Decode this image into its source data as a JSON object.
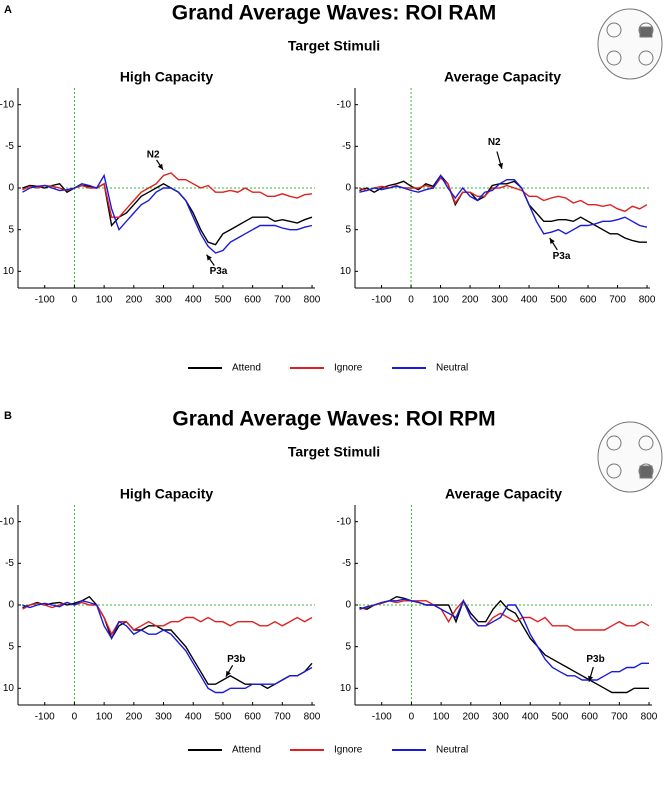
{
  "figure": {
    "panels": [
      {
        "label": "A",
        "title": "Grand Average Waves: ROI RAM",
        "subtitle": "Target Stimuli"
      },
      {
        "label": "B",
        "title": "Grand Average Waves: ROI RPM",
        "subtitle": "Target Stimuli"
      }
    ]
  },
  "chart_data": [
    {
      "type": "line",
      "title": "High Capacity",
      "annotations": [
        "N2",
        "P3a"
      ],
      "x": [
        -175,
        -150,
        -125,
        -100,
        -75,
        -50,
        -25,
        0,
        25,
        50,
        75,
        100,
        125,
        150,
        175,
        200,
        225,
        250,
        275,
        300,
        325,
        350,
        375,
        400,
        425,
        450,
        475,
        500,
        525,
        550,
        575,
        600,
        625,
        650,
        675,
        700,
        725,
        750,
        775,
        800
      ],
      "xlim": [
        -190,
        810
      ],
      "xticks": [
        -100,
        0,
        100,
        200,
        300,
        400,
        500,
        600,
        700,
        800
      ],
      "ylim": [
        -12,
        12
      ],
      "y_inverted": true,
      "yticks": [
        -10,
        -5,
        0,
        5,
        10
      ],
      "series": [
        {
          "name": "Attend",
          "color": "#000000",
          "values": [
            0,
            -0.3,
            -0.2,
            0,
            -0.3,
            -0.5,
            0.5,
            0,
            -0.3,
            -0.2,
            0,
            -0.5,
            4.5,
            3.5,
            3,
            2,
            1,
            0.5,
            0,
            -0.5,
            0,
            0.5,
            1.5,
            3,
            5,
            6.5,
            6.8,
            5.5,
            5,
            4.5,
            4,
            3.5,
            3.5,
            3.5,
            4,
            3.8,
            4,
            4.2,
            3.8,
            3.5
          ]
        },
        {
          "name": "Ignore",
          "color": "#e02020",
          "values": [
            0.2,
            -0.2,
            0,
            -0.3,
            -0.2,
            0,
            0.3,
            0,
            -0.3,
            0,
            0,
            -0.5,
            3.5,
            3.5,
            2.5,
            1.5,
            0.5,
            0,
            -0.5,
            -1.5,
            -1.8,
            -1,
            -1,
            -0.5,
            0,
            -0.3,
            0.5,
            0.5,
            0.3,
            0.5,
            0,
            0.5,
            0.5,
            1,
            1,
            0.7,
            1,
            1.2,
            0.8,
            0.7
          ]
        },
        {
          "name": "Neutral",
          "color": "#1a1adb",
          "values": [
            0.5,
            0,
            -0.2,
            -0.3,
            0,
            0.3,
            0.2,
            0,
            -0.5,
            -0.3,
            0,
            -1.5,
            2.5,
            5,
            4,
            3,
            2,
            1.5,
            0.5,
            0,
            0,
            0.5,
            1.5,
            3.5,
            5.5,
            7,
            7.8,
            7.5,
            6.5,
            6,
            5.5,
            5,
            4.5,
            4.5,
            4.5,
            4.8,
            5,
            5,
            4.7,
            4.5
          ]
        }
      ]
    },
    {
      "type": "line",
      "title": "Average Capacity",
      "annotations": [
        "N2",
        "P3a"
      ],
      "x": [
        -175,
        -150,
        -125,
        -100,
        -75,
        -50,
        -25,
        0,
        25,
        50,
        75,
        100,
        125,
        150,
        175,
        200,
        225,
        250,
        275,
        300,
        325,
        350,
        375,
        400,
        425,
        450,
        475,
        500,
        525,
        550,
        575,
        600,
        625,
        650,
        675,
        700,
        725,
        750,
        775,
        800
      ],
      "xlim": [
        -190,
        810
      ],
      "xticks": [
        -100,
        0,
        100,
        200,
        300,
        400,
        500,
        600,
        700,
        800
      ],
      "ylim": [
        -12,
        12
      ],
      "y_inverted": true,
      "yticks": [
        -10,
        -5,
        0,
        5,
        10
      ],
      "series": [
        {
          "name": "Attend",
          "color": "#000000",
          "values": [
            0.3,
            0,
            0.5,
            0,
            -0.3,
            -0.5,
            -0.8,
            -0.2,
            0.2,
            -0.5,
            -0.2,
            -1.5,
            -0.5,
            2,
            0.5,
            0.5,
            1.5,
            1,
            -0.3,
            -0.5,
            -0.5,
            -0.8,
            0,
            2,
            3,
            4,
            4,
            3.8,
            3.8,
            4,
            3.5,
            4,
            4.5,
            5,
            5.5,
            5.5,
            6,
            6.3,
            6.5,
            6.5
          ]
        },
        {
          "name": "Ignore",
          "color": "#e02020",
          "values": [
            0,
            0.3,
            0,
            -0.2,
            0,
            -0.3,
            0,
            0,
            0,
            -0.3,
            0,
            -1.2,
            -0.5,
            1.8,
            0.5,
            0.5,
            1,
            1,
            0,
            0,
            -0.3,
            0,
            0.3,
            1,
            1,
            1.5,
            1.2,
            1,
            1.2,
            1.8,
            1.5,
            2,
            2,
            2.2,
            2,
            2.5,
            2.8,
            2.2,
            2.5,
            2
          ]
        },
        {
          "name": "Neutral",
          "color": "#1a1adb",
          "values": [
            0.5,
            0.3,
            0,
            0.2,
            0,
            -0.2,
            0,
            0.3,
            0.5,
            0.2,
            0,
            -1.5,
            0,
            1.2,
            0,
            1,
            1.5,
            0.5,
            0.3,
            -0.5,
            -1,
            -1,
            0,
            2,
            4,
            5.5,
            5.3,
            5,
            5.5,
            5,
            4.5,
            4.5,
            4.3,
            4,
            4,
            3.8,
            3.5,
            4,
            4.5,
            4.7
          ]
        }
      ]
    },
    {
      "type": "line",
      "title": "High Capacity",
      "annotations": [
        "P3b"
      ],
      "x": [
        -175,
        -150,
        -125,
        -100,
        -75,
        -50,
        -25,
        0,
        25,
        50,
        75,
        100,
        125,
        150,
        175,
        200,
        225,
        250,
        275,
        300,
        325,
        350,
        375,
        400,
        425,
        450,
        475,
        500,
        525,
        550,
        575,
        600,
        625,
        650,
        675,
        700,
        725,
        750,
        775,
        800
      ],
      "xlim": [
        -190,
        810
      ],
      "xticks": [
        -100,
        0,
        100,
        200,
        300,
        400,
        500,
        600,
        700,
        800
      ],
      "ylim": [
        -12,
        12
      ],
      "y_inverted": true,
      "yticks": [
        -10,
        -5,
        0,
        5,
        10
      ],
      "series": [
        {
          "name": "Attend",
          "color": "#000000",
          "values": [
            0.3,
            0,
            -0.3,
            0,
            -0.2,
            -0.3,
            0,
            -0.2,
            -0.5,
            -1,
            0,
            1.5,
            4,
            2.5,
            2,
            3,
            3,
            2.5,
            2.5,
            3,
            3,
            4,
            5,
            6.5,
            8,
            9.5,
            9.5,
            9,
            8.5,
            9,
            9.5,
            9.5,
            9.5,
            10,
            9.5,
            9,
            8.5,
            8.5,
            8,
            7
          ]
        },
        {
          "name": "Ignore",
          "color": "#e02020",
          "values": [
            0.5,
            0,
            -0.2,
            0,
            0.3,
            0,
            -0.3,
            0,
            -0.3,
            0,
            0,
            1.5,
            3.5,
            2,
            2,
            3,
            2.5,
            2,
            2.5,
            2.5,
            2,
            2,
            1.5,
            1.5,
            2,
            1.5,
            2,
            2,
            2.5,
            2,
            2,
            2,
            2.5,
            2.5,
            2,
            2.5,
            2,
            1.5,
            2,
            1.5
          ]
        },
        {
          "name": "Neutral",
          "color": "#1a1adb",
          "values": [
            0,
            0.3,
            0,
            -0.2,
            0,
            0.2,
            -0.3,
            0,
            -0.5,
            -0.3,
            0,
            2.5,
            4,
            2,
            2.5,
            3.5,
            3,
            3.5,
            3.5,
            3,
            3.5,
            4.5,
            5.5,
            7,
            8.5,
            10,
            10.5,
            10.5,
            10,
            10,
            10,
            9.5,
            9.5,
            9.5,
            9.5,
            9,
            8.5,
            8.5,
            8,
            7.5
          ]
        }
      ]
    },
    {
      "type": "line",
      "title": "Average Capacity",
      "annotations": [
        "P3b"
      ],
      "x": [
        -175,
        -150,
        -125,
        -100,
        -75,
        -50,
        -25,
        0,
        25,
        50,
        75,
        100,
        125,
        150,
        175,
        200,
        225,
        250,
        275,
        300,
        325,
        350,
        375,
        400,
        425,
        450,
        475,
        500,
        525,
        550,
        575,
        600,
        625,
        650,
        675,
        700,
        725,
        750,
        775,
        800
      ],
      "xlim": [
        -190,
        810
      ],
      "xticks": [
        -100,
        0,
        100,
        200,
        300,
        400,
        500,
        600,
        700,
        800
      ],
      "ylim": [
        -12,
        12
      ],
      "y_inverted": true,
      "yticks": [
        -10,
        -5,
        0,
        5,
        10
      ],
      "series": [
        {
          "name": "Attend",
          "color": "#000000",
          "values": [
            0.3,
            0.5,
            0,
            -0.3,
            -0.5,
            -1,
            -0.8,
            -0.5,
            -0.3,
            0,
            0,
            0,
            0,
            2,
            -0.5,
            1,
            2,
            2,
            0.5,
            -0.5,
            0.5,
            1,
            2.5,
            4,
            5,
            6,
            6.5,
            7,
            7.5,
            8,
            8.5,
            9,
            9.5,
            10,
            10.5,
            10.5,
            10.5,
            10,
            10,
            10
          ]
        },
        {
          "name": "Ignore",
          "color": "#e02020",
          "values": [
            0.5,
            0.3,
            0,
            -0.2,
            -0.5,
            -0.3,
            -0.5,
            -0.5,
            -0.5,
            -0.5,
            0,
            0.5,
            2,
            0.5,
            -0.5,
            1.5,
            2.5,
            2.5,
            1.5,
            1,
            1.5,
            2,
            1.5,
            1.5,
            2,
            1.5,
            2.5,
            2.5,
            2.5,
            3,
            3,
            3,
            3,
            3,
            2.5,
            2,
            2.5,
            2.5,
            2,
            2.5
          ]
        },
        {
          "name": "Neutral",
          "color": "#1a1adb",
          "values": [
            0.5,
            0.2,
            0,
            -0.3,
            -0.5,
            -0.5,
            -0.7,
            -0.5,
            -0.3,
            0,
            0,
            0.5,
            1,
            1.5,
            -0.5,
            1.5,
            2.5,
            2.5,
            2,
            1.5,
            0,
            0,
            1.5,
            3.5,
            5,
            6.5,
            7.5,
            8,
            8.5,
            8.5,
            9,
            9,
            9,
            8.5,
            8,
            8,
            7.5,
            7.5,
            7,
            7
          ]
        }
      ]
    }
  ]
}
